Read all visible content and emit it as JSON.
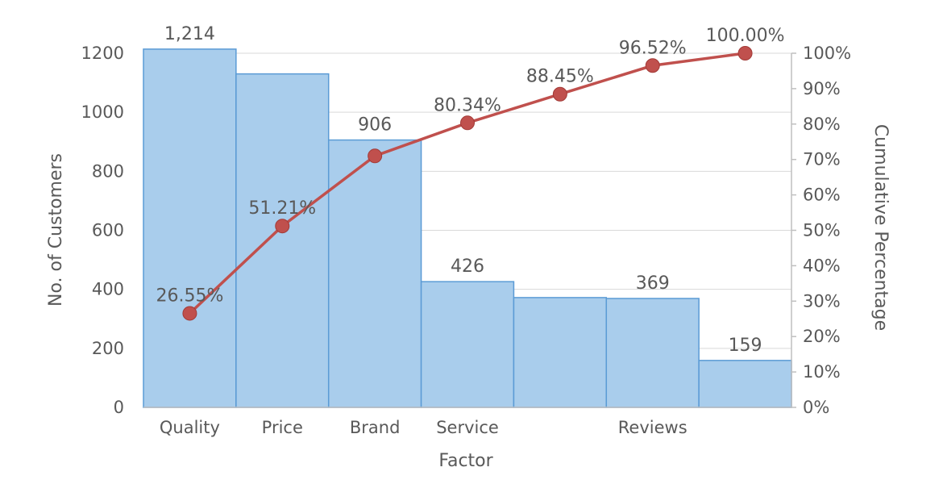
{
  "chart_data": {
    "type": "bar",
    "xlabel": "Factor",
    "ylabel": "No. of Customers",
    "y2label": "Cumulative Percentage",
    "ylim": [
      0,
      1200
    ],
    "y2lim": [
      0,
      100
    ],
    "y_ticks": [
      "0",
      "200",
      "400",
      "600",
      "800",
      "1000",
      "1200"
    ],
    "y2_ticks": [
      "0%",
      "10%",
      "20%",
      "30%",
      "40%",
      "50%",
      "60%",
      "70%",
      "80%",
      "90%",
      "100%"
    ],
    "categories": [
      "Quality",
      "Price",
      "Brand",
      "Service",
      "",
      "Reviews",
      ""
    ],
    "grid": true,
    "colors": {
      "bar_fill": "#a9cdec",
      "bar_stroke": "#5b9bd5",
      "line": "#c0504d",
      "text": "#595959",
      "grid": "#d9d9d9"
    },
    "series": [
      {
        "type": "bar",
        "values": [
          1214,
          1130,
          906,
          426,
          372,
          369,
          159
        ],
        "labels": [
          "1,214",
          "",
          "906",
          "426",
          "",
          "369",
          "159"
        ]
      },
      {
        "type": "line",
        "axis": "right",
        "values": [
          26.55,
          51.21,
          71.0,
          80.34,
          88.45,
          96.52,
          100.0
        ],
        "labels": [
          "26.55%",
          "51.21%",
          "",
          "80.34%",
          "88.45%",
          "96.52%",
          "100.00%"
        ]
      }
    ]
  }
}
